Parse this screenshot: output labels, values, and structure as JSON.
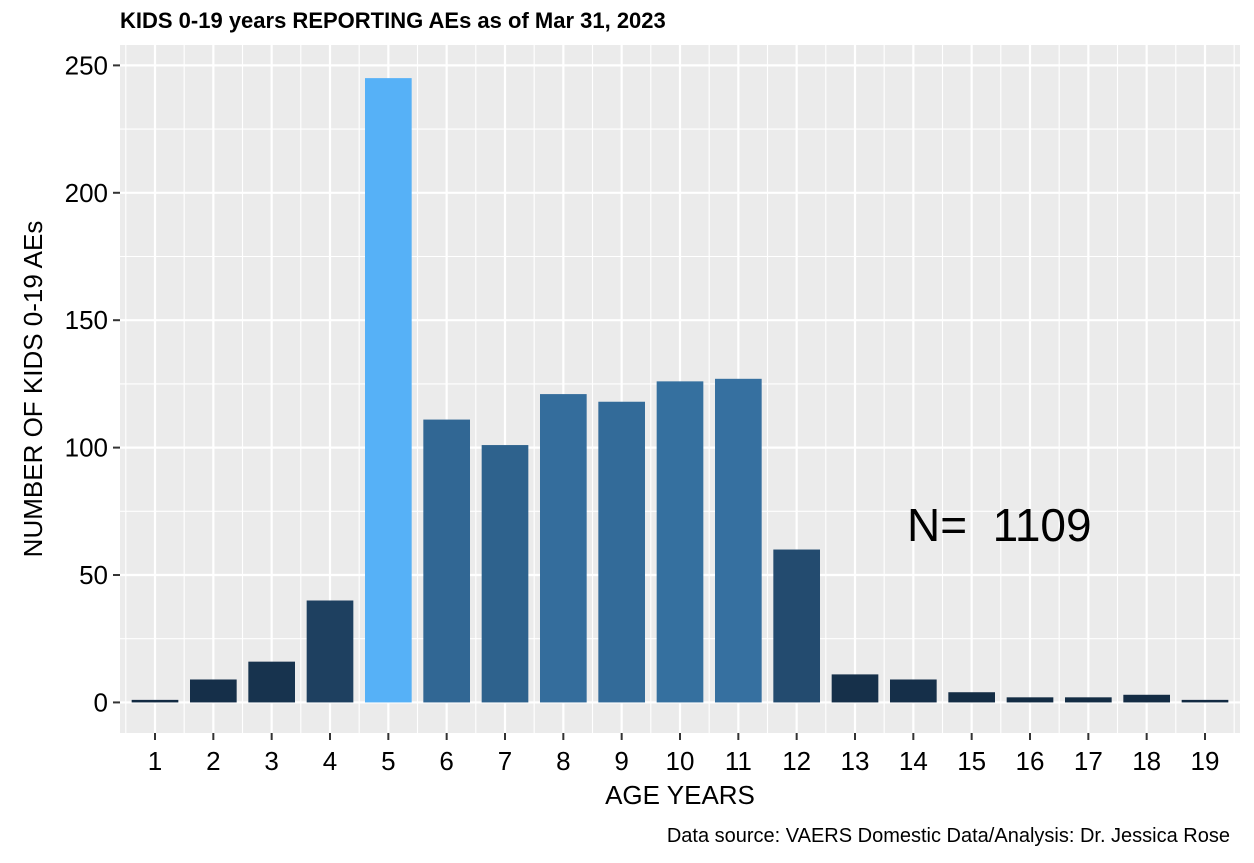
{
  "chart_data": {
    "type": "bar",
    "title": "KIDS 0-19 years REPORTING AEs as of Mar 31, 2023",
    "xlabel": "AGE YEARS",
    "ylabel": "NUMBER OF KIDS 0-19 AEs",
    "caption": "Data source: VAERS Domestic Data/Analysis: Dr. Jessica Rose",
    "annotation": "N=  1109",
    "categories": [
      "1",
      "2",
      "3",
      "4",
      "5",
      "6",
      "7",
      "8",
      "9",
      "10",
      "11",
      "12",
      "13",
      "14",
      "15",
      "16",
      "17",
      "18",
      "19"
    ],
    "values": [
      1,
      9,
      16,
      40,
      245,
      111,
      101,
      121,
      118,
      126,
      127,
      60,
      11,
      9,
      4,
      2,
      2,
      3,
      1
    ],
    "ylim": [
      -12,
      258
    ],
    "yticks": [
      0,
      50,
      100,
      150,
      200,
      250
    ],
    "grid": true,
    "legend": "none",
    "colors": {
      "panel_background": "#ebebeb",
      "grid": "#ffffff",
      "bar_low": "#132b43",
      "bar_high": "#56b1f7"
    }
  }
}
